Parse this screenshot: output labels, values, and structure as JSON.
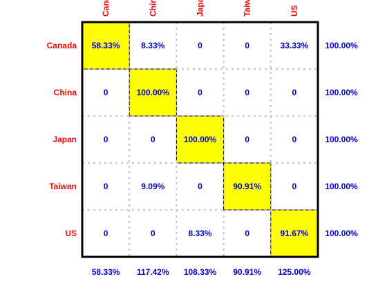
{
  "chart_data": {
    "type": "heatmap",
    "column_labels": [
      "Canada",
      "China",
      "Japan",
      "Taiwan",
      "US"
    ],
    "row_labels": [
      "Canada",
      "China",
      "Japan",
      "Taiwan",
      "US"
    ],
    "cells": [
      [
        "58.33%",
        "8.33%",
        "0",
        "0",
        "33.33%"
      ],
      [
        "0",
        "100.00%",
        "0",
        "0",
        "0"
      ],
      [
        "0",
        "0",
        "100.00%",
        "0",
        "0"
      ],
      [
        "0",
        "9.09%",
        "0",
        "90.91%",
        "0"
      ],
      [
        "0",
        "0",
        "8.33%",
        "0",
        "91.67%"
      ]
    ],
    "row_totals": [
      "100.00%",
      "100.00%",
      "100.00%",
      "100.00%",
      "100.00%"
    ],
    "column_totals": [
      "58.33%",
      "117.42%",
      "108.33%",
      "90.91%",
      "125.00%"
    ],
    "highlight": "diagonal",
    "grid": true,
    "colors": {
      "highlight_fill": "#ffff00",
      "label_color": "#ff0000",
      "value_color": "#0000cc",
      "grid_color": "#c8c8c8",
      "frame_color": "#000000"
    }
  }
}
